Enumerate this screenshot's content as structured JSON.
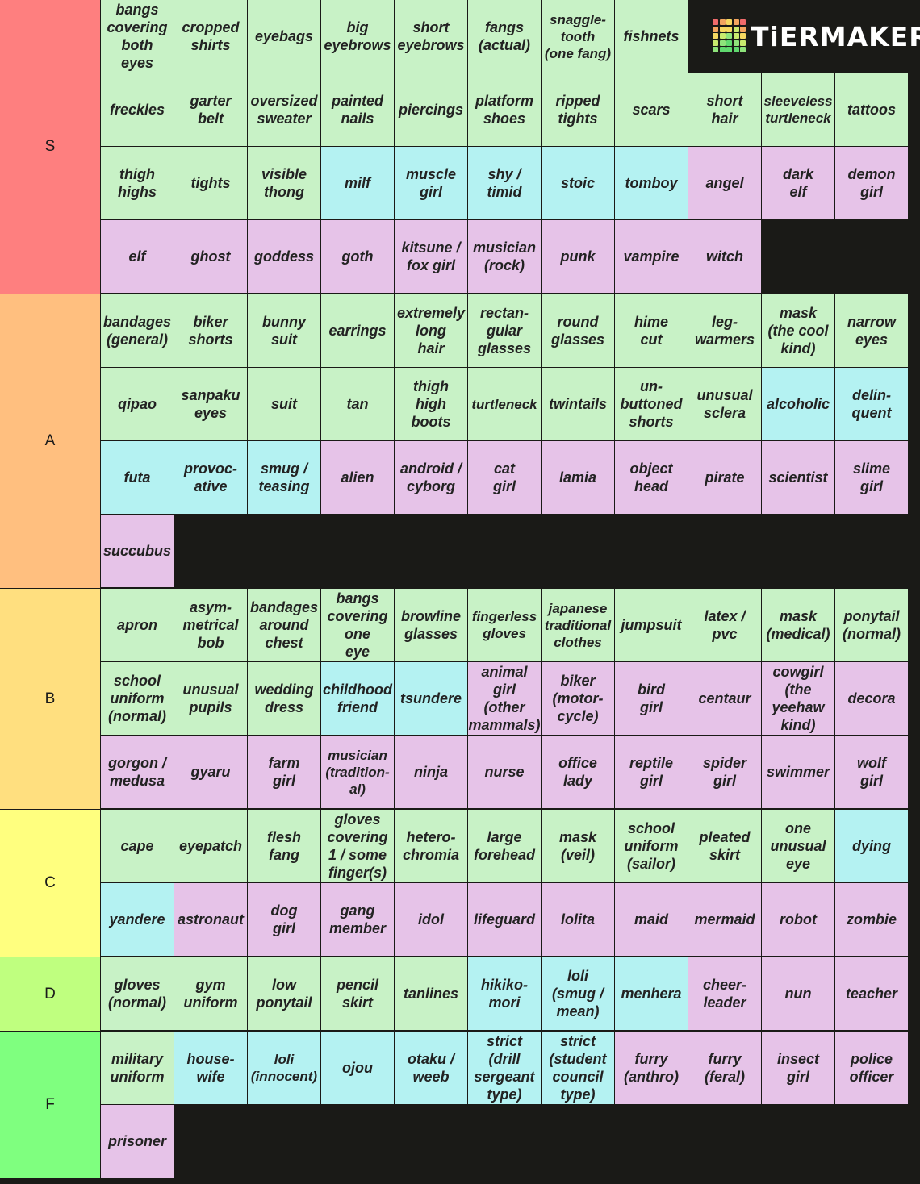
{
  "app": {
    "logo_text": "TiERMAKER"
  },
  "colors": {
    "physical": "#c8f2c6",
    "personality": "#b4f2f2",
    "archetype": "#e6c3e8",
    "logo_cells": [
      "#f06b6b",
      "#f3a55f",
      "#f6d860",
      "#f3a55f",
      "#f06b6b",
      "#f3a55f",
      "#f6d860",
      "#f6d860",
      "#c8ea6e",
      "#f3a55f",
      "#f6d860",
      "#c8ea6e",
      "#8ee37b",
      "#c8ea6e",
      "#f6d860",
      "#c8ea6e",
      "#8ee37b",
      "#5fd86e",
      "#8ee37b",
      "#c8ea6e",
      "#8ee37b",
      "#5fd86e",
      "#5fd86e",
      "#5fd86e",
      "#8ee37b"
    ]
  },
  "tiers": [
    {
      "label": "S",
      "color": "#fe7f7f",
      "rows": 4,
      "items": [
        {
          "text": "bangs\ncovering\nboth\neyes",
          "kind": "physical"
        },
        {
          "text": "cropped\nshirts",
          "kind": "physical"
        },
        {
          "text": "eyebags",
          "kind": "physical"
        },
        {
          "text": "big\neyebrows",
          "kind": "physical"
        },
        {
          "text": "short\neyebrows",
          "kind": "physical"
        },
        {
          "text": "fangs\n(actual)",
          "kind": "physical"
        },
        {
          "text": "snaggle-\ntooth\n(one fang)",
          "kind": "physical"
        },
        {
          "text": "fishnets",
          "kind": "physical"
        },
        {
          "text": "freckles",
          "kind": "physical"
        },
        {
          "text": "garter\nbelt",
          "kind": "physical"
        },
        {
          "text": "oversized\nsweater",
          "kind": "physical"
        },
        {
          "text": "painted\nnails",
          "kind": "physical"
        },
        {
          "text": "piercings",
          "kind": "physical"
        },
        {
          "text": "platform\nshoes",
          "kind": "physical"
        },
        {
          "text": "ripped\ntights",
          "kind": "physical"
        },
        {
          "text": "scars",
          "kind": "physical"
        },
        {
          "text": "short\nhair",
          "kind": "physical"
        },
        {
          "text": "sleeveless\nturtleneck",
          "kind": "physical"
        },
        {
          "text": "tattoos",
          "kind": "physical"
        },
        {
          "text": "thigh\nhighs",
          "kind": "physical"
        },
        {
          "text": "tights",
          "kind": "physical"
        },
        {
          "text": "visible\nthong",
          "kind": "physical"
        },
        {
          "text": "milf",
          "kind": "personality"
        },
        {
          "text": "muscle\ngirl",
          "kind": "personality"
        },
        {
          "text": "shy /\ntimid",
          "kind": "personality"
        },
        {
          "text": "stoic",
          "kind": "personality"
        },
        {
          "text": "tomboy",
          "kind": "personality"
        },
        {
          "text": "angel",
          "kind": "archetype"
        },
        {
          "text": "dark\nelf",
          "kind": "archetype"
        },
        {
          "text": "demon\ngirl",
          "kind": "archetype"
        },
        {
          "text": "elf",
          "kind": "archetype"
        },
        {
          "text": "ghost",
          "kind": "archetype"
        },
        {
          "text": "goddess",
          "kind": "archetype"
        },
        {
          "text": "goth",
          "kind": "archetype"
        },
        {
          "text": "kitsune /\nfox girl",
          "kind": "archetype"
        },
        {
          "text": "musician\n(rock)",
          "kind": "archetype"
        },
        {
          "text": "punk",
          "kind": "archetype"
        },
        {
          "text": "vampire",
          "kind": "archetype"
        },
        {
          "text": "witch",
          "kind": "archetype"
        }
      ]
    },
    {
      "label": "A",
      "color": "#ffbf7f",
      "rows": 4,
      "items": [
        {
          "text": "bandages\n(general)",
          "kind": "physical"
        },
        {
          "text": "biker\nshorts",
          "kind": "physical"
        },
        {
          "text": "bunny\nsuit",
          "kind": "physical"
        },
        {
          "text": "earrings",
          "kind": "physical"
        },
        {
          "text": "extremely\nlong\nhair",
          "kind": "physical"
        },
        {
          "text": "rectan-\ngular\nglasses",
          "kind": "physical"
        },
        {
          "text": "round\nglasses",
          "kind": "physical"
        },
        {
          "text": "hime\ncut",
          "kind": "physical"
        },
        {
          "text": "leg-\nwarmers",
          "kind": "physical"
        },
        {
          "text": "mask\n(the cool\nkind)",
          "kind": "physical"
        },
        {
          "text": "narrow\neyes",
          "kind": "physical"
        },
        {
          "text": "qipao",
          "kind": "physical"
        },
        {
          "text": "sanpaku\neyes",
          "kind": "physical"
        },
        {
          "text": "suit",
          "kind": "physical"
        },
        {
          "text": "tan",
          "kind": "physical"
        },
        {
          "text": "thigh\nhigh\nboots",
          "kind": "physical"
        },
        {
          "text": "turtleneck",
          "kind": "physical"
        },
        {
          "text": "twintails",
          "kind": "physical"
        },
        {
          "text": "un-\nbuttoned\nshorts",
          "kind": "physical"
        },
        {
          "text": "unusual\nsclera",
          "kind": "physical"
        },
        {
          "text": "alcoholic",
          "kind": "personality"
        },
        {
          "text": "delin-\nquent",
          "kind": "personality"
        },
        {
          "text": "futa",
          "kind": "personality"
        },
        {
          "text": "provoc-\native",
          "kind": "personality"
        },
        {
          "text": "smug /\nteasing",
          "kind": "personality"
        },
        {
          "text": "alien",
          "kind": "archetype"
        },
        {
          "text": "android /\ncyborg",
          "kind": "archetype"
        },
        {
          "text": "cat\ngirl",
          "kind": "archetype"
        },
        {
          "text": "lamia",
          "kind": "archetype"
        },
        {
          "text": "object\nhead",
          "kind": "archetype"
        },
        {
          "text": "pirate",
          "kind": "archetype"
        },
        {
          "text": "scientist",
          "kind": "archetype"
        },
        {
          "text": "slime\ngirl",
          "kind": "archetype"
        },
        {
          "text": "succubus",
          "kind": "archetype"
        }
      ]
    },
    {
      "label": "B",
      "color": "#ffdf7f",
      "rows": 3,
      "items": [
        {
          "text": "apron",
          "kind": "physical"
        },
        {
          "text": "asym-\nmetrical\nbob",
          "kind": "physical"
        },
        {
          "text": "bandages\naround\nchest",
          "kind": "physical"
        },
        {
          "text": "bangs\ncovering\none\neye",
          "kind": "physical"
        },
        {
          "text": "browline\nglasses",
          "kind": "physical"
        },
        {
          "text": "fingerless\ngloves",
          "kind": "physical"
        },
        {
          "text": "japanese\ntraditional\nclothes",
          "kind": "physical"
        },
        {
          "text": "jumpsuit",
          "kind": "physical"
        },
        {
          "text": "latex /\npvc",
          "kind": "physical"
        },
        {
          "text": "mask\n(medical)",
          "kind": "physical"
        },
        {
          "text": "ponytail\n(normal)",
          "kind": "physical"
        },
        {
          "text": "school\nuniform\n(normal)",
          "kind": "physical"
        },
        {
          "text": "unusual\npupils",
          "kind": "physical"
        },
        {
          "text": "wedding\ndress",
          "kind": "physical"
        },
        {
          "text": "childhood\nfriend",
          "kind": "personality"
        },
        {
          "text": "tsundere",
          "kind": "personality"
        },
        {
          "text": "animal\ngirl\n(other\nmammals)",
          "kind": "archetype"
        },
        {
          "text": "biker\n(motor-\ncycle)",
          "kind": "archetype"
        },
        {
          "text": "bird\ngirl",
          "kind": "archetype"
        },
        {
          "text": "centaur",
          "kind": "archetype"
        },
        {
          "text": "cowgirl\n(the\nyeehaw\nkind)",
          "kind": "archetype"
        },
        {
          "text": "decora",
          "kind": "archetype"
        },
        {
          "text": "gorgon /\nmedusa",
          "kind": "archetype"
        },
        {
          "text": "gyaru",
          "kind": "archetype"
        },
        {
          "text": "farm\ngirl",
          "kind": "archetype"
        },
        {
          "text": "musician\n(tradition-\nal)",
          "kind": "archetype"
        },
        {
          "text": "ninja",
          "kind": "archetype"
        },
        {
          "text": "nurse",
          "kind": "archetype"
        },
        {
          "text": "office\nlady",
          "kind": "archetype"
        },
        {
          "text": "reptile\ngirl",
          "kind": "archetype"
        },
        {
          "text": "spider\ngirl",
          "kind": "archetype"
        },
        {
          "text": "swimmer",
          "kind": "archetype"
        },
        {
          "text": "wolf\ngirl",
          "kind": "archetype"
        }
      ]
    },
    {
      "label": "C",
      "color": "#ffff7f",
      "rows": 2,
      "items": [
        {
          "text": "cape",
          "kind": "physical"
        },
        {
          "text": "eyepatch",
          "kind": "physical"
        },
        {
          "text": "flesh\nfang",
          "kind": "physical"
        },
        {
          "text": "gloves\ncovering\n1 / some\nfinger(s)",
          "kind": "physical"
        },
        {
          "text": "hetero-\nchromia",
          "kind": "physical"
        },
        {
          "text": "large\nforehead",
          "kind": "physical"
        },
        {
          "text": "mask\n(veil)",
          "kind": "physical"
        },
        {
          "text": "school\nuniform\n(sailor)",
          "kind": "physical"
        },
        {
          "text": "pleated\nskirt",
          "kind": "physical"
        },
        {
          "text": "one\nunusual\neye",
          "kind": "physical"
        },
        {
          "text": "dying",
          "kind": "personality"
        },
        {
          "text": "yandere",
          "kind": "personality"
        },
        {
          "text": "astronaut",
          "kind": "archetype"
        },
        {
          "text": "dog\ngirl",
          "kind": "archetype"
        },
        {
          "text": "gang\nmember",
          "kind": "archetype"
        },
        {
          "text": "idol",
          "kind": "archetype"
        },
        {
          "text": "lifeguard",
          "kind": "archetype"
        },
        {
          "text": "lolita",
          "kind": "archetype"
        },
        {
          "text": "maid",
          "kind": "archetype"
        },
        {
          "text": "mermaid",
          "kind": "archetype"
        },
        {
          "text": "robot",
          "kind": "archetype"
        },
        {
          "text": "zombie",
          "kind": "archetype"
        }
      ]
    },
    {
      "label": "D",
      "color": "#bfff7f",
      "rows": 1,
      "items": [
        {
          "text": "gloves\n(normal)",
          "kind": "physical"
        },
        {
          "text": "gym\nuniform",
          "kind": "physical"
        },
        {
          "text": "low\nponytail",
          "kind": "physical"
        },
        {
          "text": "pencil\nskirt",
          "kind": "physical"
        },
        {
          "text": "tanlines",
          "kind": "physical"
        },
        {
          "text": "hikiko-\nmori",
          "kind": "personality"
        },
        {
          "text": "loli\n(smug /\nmean)",
          "kind": "personality"
        },
        {
          "text": "menhera",
          "kind": "personality"
        },
        {
          "text": "cheer-\nleader",
          "kind": "archetype"
        },
        {
          "text": "nun",
          "kind": "archetype"
        },
        {
          "text": "teacher",
          "kind": "archetype"
        }
      ]
    },
    {
      "label": "F",
      "color": "#7fff7f",
      "rows": 2,
      "items": [
        {
          "text": "military\nuniform",
          "kind": "physical"
        },
        {
          "text": "house-\nwife",
          "kind": "personality"
        },
        {
          "text": "loli\n(innocent)",
          "kind": "personality"
        },
        {
          "text": "ojou",
          "kind": "personality"
        },
        {
          "text": "otaku /\nweeb",
          "kind": "personality"
        },
        {
          "text": "strict\n(drill\nsergeant\ntype)",
          "kind": "personality"
        },
        {
          "text": "strict\n(student\ncouncil\ntype)",
          "kind": "personality"
        },
        {
          "text": "furry\n(anthro)",
          "kind": "archetype"
        },
        {
          "text": "furry\n(feral)",
          "kind": "archetype"
        },
        {
          "text": "insect\ngirl",
          "kind": "archetype"
        },
        {
          "text": "police\nofficer",
          "kind": "archetype"
        },
        {
          "text": "prisoner",
          "kind": "archetype"
        }
      ]
    }
  ]
}
